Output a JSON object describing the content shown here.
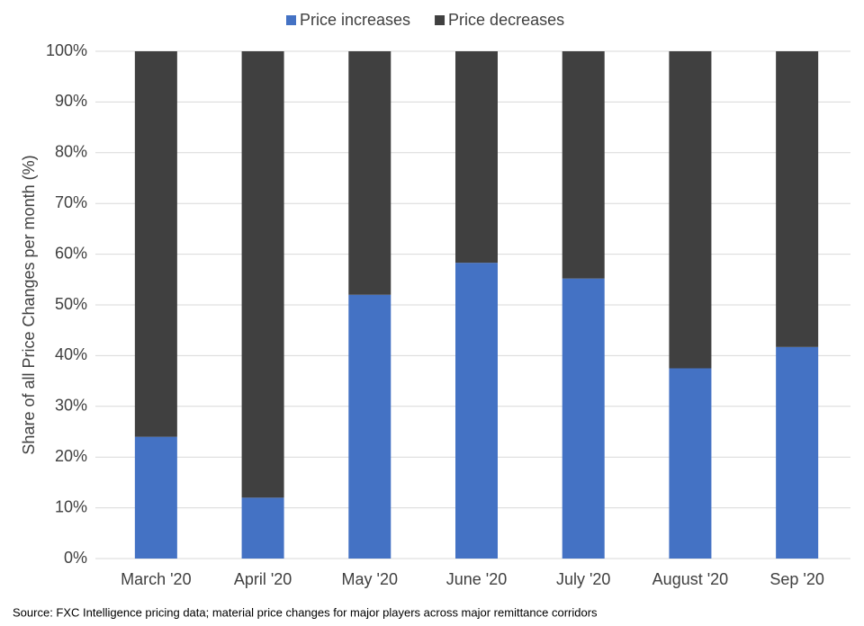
{
  "chart_data": {
    "type": "stacked_bar",
    "ylabel": "Share of all Price Changes per month (%)",
    "source": "Source: FXC Intelligence pricing data; material price changes for major players across major remittance corridors",
    "categories": [
      "March '20",
      "April '20",
      "May '20",
      "June '20",
      "July '20",
      "August '20",
      "Sep '20"
    ],
    "series": [
      {
        "name": "Price increases",
        "color": "#4472c4",
        "values": [
          24,
          12,
          52,
          58.3,
          55.2,
          37.5,
          41.7
        ]
      },
      {
        "name": "Price decreases",
        "color": "#404040",
        "values": [
          76,
          88,
          48,
          41.7,
          44.8,
          62.5,
          58.3
        ]
      }
    ],
    "ylim": [
      0,
      100
    ],
    "yticks": [
      {
        "value": 0,
        "label": "0%"
      },
      {
        "value": 10,
        "label": "10%"
      },
      {
        "value": 20,
        "label": "20%"
      },
      {
        "value": 30,
        "label": "30%"
      },
      {
        "value": 40,
        "label": "40%"
      },
      {
        "value": 50,
        "label": "50%"
      },
      {
        "value": 60,
        "label": "60%"
      },
      {
        "value": 70,
        "label": "70%"
      },
      {
        "value": 80,
        "label": "80%"
      },
      {
        "value": 90,
        "label": "90%"
      },
      {
        "value": 100,
        "label": "100%"
      }
    ],
    "grid": true,
    "legend": "top"
  }
}
